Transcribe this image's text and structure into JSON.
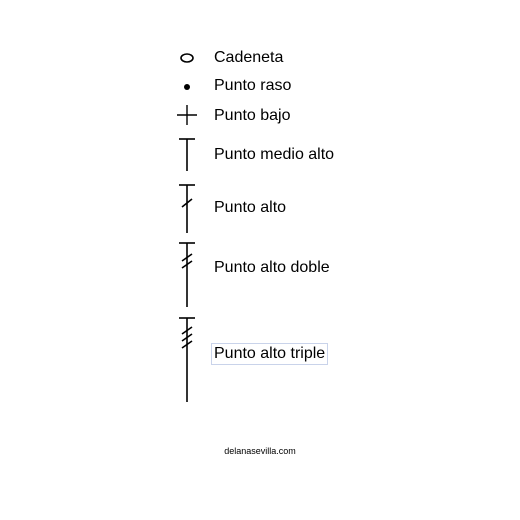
{
  "legend": {
    "items": [
      {
        "label": "Cadeneta",
        "icon": "chain-stitch-icon"
      },
      {
        "label": "Punto raso",
        "icon": "slip-stitch-icon"
      },
      {
        "label": "Punto bajo",
        "icon": "single-crochet-icon"
      },
      {
        "label": "Punto medio alto",
        "icon": "half-double-crochet-icon"
      },
      {
        "label": "Punto alto",
        "icon": "double-crochet-icon"
      },
      {
        "label": "Punto alto doble",
        "icon": "treble-crochet-icon"
      },
      {
        "label": "Punto alto triple",
        "icon": "double-treble-crochet-icon"
      }
    ]
  },
  "footer": {
    "text": "delanasevilla.com"
  }
}
